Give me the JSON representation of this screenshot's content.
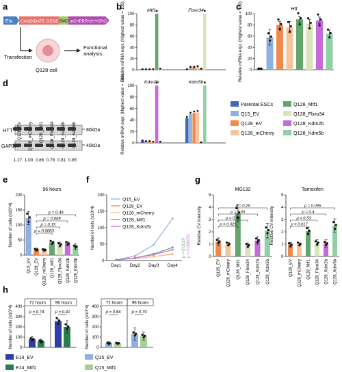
{
  "palette": {
    "parental": "#3d6bb3",
    "q15_ev": "#8fb0e0",
    "q128_ev": "#f08a4b",
    "q128_mcherry": "#f6c49c",
    "mtf1": "#63a66b",
    "fbxo34": "#d9e4b8",
    "kdm2b": "#c36bd9",
    "kdm5b": "#8fd0a4",
    "e14_ev": "#2f3fa8",
    "e14_mtf1": "#2e7d4f",
    "q15_mtf1": "#a9cf98"
  },
  "panel_letters": [
    "a",
    "b",
    "c",
    "d",
    "e",
    "f",
    "g",
    "h"
  ],
  "panel_a": {
    "construct": [
      "EIa",
      "CANDIDATE GENE",
      "EMCV",
      "mCHERRY/HYGRO"
    ],
    "transfection": "Transfection",
    "cell": "Q128 cell",
    "analysis_line1": "Functional",
    "analysis_line2": "analysis"
  },
  "panel_d": {
    "lanes": [
      "Q128_EV",
      "Q128_mCherry",
      "Q128_Mtf1",
      "Q128_Fbxo34",
      "Q128_Kdm2b",
      "Q128_Kdm5b"
    ],
    "rows": [
      "HTT",
      "GAPDH"
    ],
    "markers": [
      "80kDa",
      "40kDa"
    ],
    "quant": [
      "1.27",
      "1.00",
      "0.86",
      "0.78",
      "0.81",
      "0.85"
    ]
  },
  "legend_b": [
    "Parental ESCs",
    "Q15_EV",
    "Q128_EV",
    "Q128_mCherry",
    "Q128_Mtf1",
    "Q128_Fbxo34",
    "Q128_Kdm2b",
    "Q128_Kdm5b"
  ],
  "panel_e": {
    "title": "96 hours"
  },
  "panel_g": {
    "titles": [
      "MG132",
      "Tamoxifen"
    ]
  },
  "panel_h": {
    "time_labels": [
      "72 hours",
      "96 hours",
      "72 hours",
      "96 hours"
    ],
    "pvalues": [
      "p = 0.74",
      "p = 0.41",
      "p = 0.84",
      "p = 0.79"
    ],
    "legend": [
      "E14_EV",
      "E14_Mtf1",
      "Q15_EV",
      "Q15_Mtf1"
    ]
  },
  "chart_data": [
    {
      "id": "b1",
      "type": "bar",
      "ylabel": "Relative mRNA expr. (Highest value = 100)",
      "ylim": [
        0,
        100
      ],
      "yticks": [
        0,
        20,
        40,
        60,
        80,
        100
      ],
      "groups": [
        "Mtf1",
        "Fbxo34"
      ],
      "series": [
        "Parental ESCs",
        "Q15_EV",
        "Q128_EV",
        "Q128_mCherry",
        "Q128_Mtf1",
        "Q128_Fbxo34"
      ],
      "values": [
        [
          1,
          1,
          1,
          1,
          100,
          2
        ],
        [
          1,
          5,
          5,
          6,
          2,
          100
        ]
      ]
    },
    {
      "id": "b2",
      "type": "bar",
      "ylabel": "Relative mRNA expr. (Highest value = 100)",
      "ylim": [
        0,
        100
      ],
      "yticks": [
        0,
        20,
        40,
        60,
        80,
        100
      ],
      "groups": [
        "Kdm2b",
        "Kdm5b"
      ],
      "series": [
        "Parental ESCs",
        "Q15_EV",
        "Q128_EV",
        "Q128_mCherry",
        "Q128_Kdm2b",
        "Q128_Kdm5b"
      ],
      "values": [
        [
          4,
          3,
          3,
          2,
          100,
          2
        ],
        [
          43,
          50,
          52,
          53,
          1,
          100
        ]
      ]
    },
    {
      "id": "c",
      "type": "bar",
      "ylabel": "Relative mRNA expr. (Highest value = 100)",
      "title": "Htt",
      "ylim": [
        0,
        100
      ],
      "yticks": [
        0,
        20,
        40,
        60,
        80,
        100
      ],
      "categories": [
        "Parental ESCs",
        "Q15_EV",
        "Q128_EV",
        "Q128_mCherry",
        "Q128_Mtf1",
        "Q128_Fbxo34",
        "Q128_Kdm2b",
        "Q128_Kdm5b"
      ],
      "values": [
        2,
        58,
        80,
        76,
        90,
        82,
        88,
        64
      ],
      "errors": [
        1,
        14,
        6,
        10,
        5,
        8,
        6,
        7
      ]
    },
    {
      "id": "e",
      "type": "bar",
      "title": "96 hours",
      "ylabel": "Number of cells (x10^4)",
      "ylim": [
        0,
        200
      ],
      "yticks": [
        0,
        50,
        100,
        150,
        200
      ],
      "categories": [
        "Q15_EV",
        "Q128_EV",
        "Q128_mCherry",
        "Q128_Mtf1",
        "Q128_Fbxo34",
        "Q128_Kdm2b",
        "Q128_Kdm5b"
      ],
      "values": [
        123,
        18,
        17,
        42,
        35,
        38,
        28
      ],
      "errors": [
        22,
        5,
        4,
        3,
        8,
        6,
        9
      ],
      "pvalues": [
        "p = 0.49",
        "p = 0.049",
        "p = 0.15",
        "p = 0.0063"
      ]
    },
    {
      "id": "f",
      "type": "line",
      "ylabel": "Number of cells (x10^4)",
      "categories": [
        "Day1",
        "Day2",
        "Day3",
        "Day4"
      ],
      "ylim": [
        0,
        200
      ],
      "yticks": [
        0,
        50,
        100,
        150,
        200
      ],
      "series": [
        {
          "name": "Q15_EV",
          "values": [
            2,
            14,
            48,
            128
          ]
        },
        {
          "name": "Q128_EV",
          "values": [
            2,
            6,
            12,
            20
          ]
        },
        {
          "name": "Q128_mCherry",
          "values": [
            2,
            6,
            12,
            19
          ]
        },
        {
          "name": "Q128_Mtf1",
          "values": [
            2,
            8,
            20,
            40
          ]
        },
        {
          "name": "Q128_Kdm2b",
          "values": [
            2,
            8,
            18,
            33
          ]
        }
      ],
      "pvalues": [
        "p = 0.0019",
        "p = 0.000031"
      ]
    },
    {
      "id": "g1",
      "type": "bar",
      "title": "MG132",
      "ylabel": "Relative CV intensity",
      "ylim": [
        0,
        5
      ],
      "yticks": [
        0,
        1,
        2,
        3,
        4,
        5
      ],
      "categories": [
        "Q128_EV",
        "Q128_mCherry",
        "Q128_Mtf1",
        "Q128_Fbxo34",
        "Q128_Kdm2b",
        "Q128_Kdm5b"
      ],
      "values": [
        1.2,
        1.0,
        3.5,
        0.9,
        1.3,
        2.1
      ],
      "errors": [
        0.3,
        0.15,
        0.7,
        0.2,
        0.3,
        0.6
      ],
      "pvalues": [
        "p = 0.29",
        "p = 0.65",
        "p = 0.51",
        "p = 0.025"
      ]
    },
    {
      "id": "g2",
      "type": "bar",
      "title": "Tamoxifen",
      "ylabel": "Relative CV intensity",
      "ylim": [
        0,
        5
      ],
      "yticks": [
        0,
        1,
        2,
        3,
        4,
        5
      ],
      "categories": [
        "Q128_EV",
        "Q128_mCherry",
        "Q128_Mtf1",
        "Q128_Fbxo34",
        "Q128_Kdm2b",
        "Q128_Kdm5b"
      ],
      "values": [
        0.95,
        1.0,
        2.05,
        1.1,
        1.05,
        2.5
      ],
      "errors": [
        0.2,
        0.1,
        0.3,
        0.25,
        0.3,
        0.55
      ],
      "pvalues": [
        "p = 0.095",
        "p = 0.4",
        "p = 0.53",
        "p = 0.017"
      ]
    },
    {
      "id": "h1",
      "type": "bar",
      "ylabel": "Number of cells (x10^4)",
      "ylim": [
        0,
        400
      ],
      "yticks": [
        0,
        100,
        200,
        300,
        400
      ],
      "groups": [
        "72 hours",
        "96 hours"
      ],
      "series": [
        "E14_EV",
        "E14_Mtf1"
      ],
      "values": [
        [
          80,
          60
        ],
        [
          255,
          200
        ]
      ],
      "errors": [
        [
          25,
          20
        ],
        [
          20,
          60
        ]
      ]
    },
    {
      "id": "h2",
      "type": "bar",
      "ylabel": "Number of cells (x10^4)",
      "ylim": [
        0,
        400
      ],
      "yticks": [
        0,
        100,
        200,
        300,
        400
      ],
      "groups": [
        "72 hours",
        "96 hours"
      ],
      "series": [
        "Q15_EV",
        "Q15_Mtf1"
      ],
      "values": [
        [
          40,
          40
        ],
        [
          130,
          110
        ]
      ],
      "errors": [
        [
          15,
          10
        ],
        [
          60,
          40
        ]
      ]
    }
  ]
}
